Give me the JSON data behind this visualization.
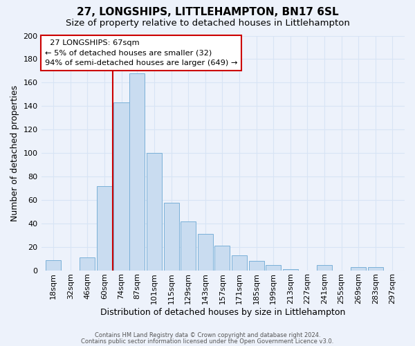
{
  "title": "27, LONGSHIPS, LITTLEHAMPTON, BN17 6SL",
  "subtitle": "Size of property relative to detached houses in Littlehampton",
  "xlabel": "Distribution of detached houses by size in Littlehampton",
  "ylabel": "Number of detached properties",
  "footer_line1": "Contains HM Land Registry data © Crown copyright and database right 2024.",
  "footer_line2": "Contains public sector information licensed under the Open Government Licence v3.0.",
  "bar_labels": [
    "18sqm",
    "32sqm",
    "46sqm",
    "60sqm",
    "74sqm",
    "87sqm",
    "101sqm",
    "115sqm",
    "129sqm",
    "143sqm",
    "157sqm",
    "171sqm",
    "185sqm",
    "199sqm",
    "213sqm",
    "227sqm",
    "241sqm",
    "255sqm",
    "269sqm",
    "283sqm",
    "297sqm"
  ],
  "bar_values": [
    9,
    0,
    11,
    72,
    143,
    168,
    100,
    58,
    42,
    31,
    21,
    13,
    8,
    5,
    1,
    0,
    5,
    0,
    3,
    3,
    0
  ],
  "bar_color": "#c9dcf0",
  "bar_edge_color": "#7ab0d8",
  "ylim": [
    0,
    200
  ],
  "yticks": [
    0,
    20,
    40,
    60,
    80,
    100,
    120,
    140,
    160,
    180,
    200
  ],
  "vline_color": "#cc0000",
  "annotation_title": "27 LONGSHIPS: 67sqm",
  "annotation_line1": "← 5% of detached houses are smaller (32)",
  "annotation_line2": "94% of semi-detached houses are larger (649) →",
  "background_color": "#edf2fb",
  "grid_color": "#d8e4f5",
  "title_fontsize": 11,
  "subtitle_fontsize": 9.5,
  "tick_label_fontsize": 8,
  "ylabel_fontsize": 9,
  "xlabel_fontsize": 9
}
